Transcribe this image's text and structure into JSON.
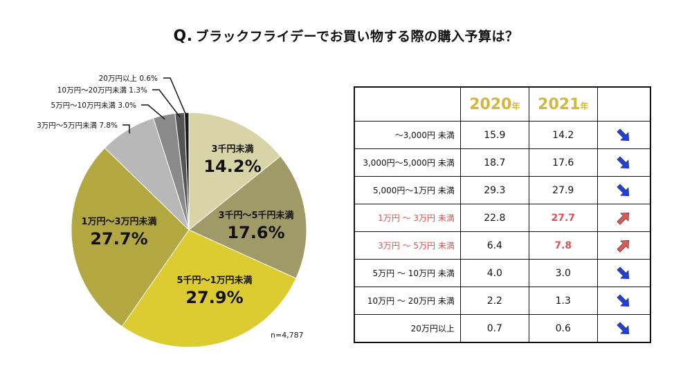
{
  "title": {
    "prefix": "Q.",
    "text": "ブラックフライデーでお買い物する際の購入予算は？"
  },
  "chart_data": [
    {
      "type": "pie",
      "series": [
        {
          "values": [
            14.2,
            17.6,
            27.9,
            27.7,
            7.8,
            3.0,
            1.3,
            0.6
          ]
        }
      ],
      "categories": [
        "3千円未満",
        "3千円～5千円未満",
        "5千円～1万円未満",
        "1万円～3万円未満",
        "3万円～5万円未満",
        "5万円～10万円未満",
        "10万円～20万円未満",
        "20万円以上"
      ],
      "value_labels": [
        "14.2%",
        "17.6%",
        "27.9%",
        "27.7%",
        "7.8%",
        "3.0%",
        "1.3%",
        "0.6%"
      ],
      "callout_labels": [
        "3万円～5万円未満 7.8%",
        "5万円～10万円未満 3.0%",
        "10万円～20万円未満 1.3%",
        "20万円以上 0.6%"
      ],
      "colors": [
        "#d9d4a8",
        "#a09a68",
        "#dccc32",
        "#b3a742",
        "#b8b8b8",
        "#8a8a8a",
        "#555555",
        "#1a1a1a"
      ],
      "note": "n=4,787"
    },
    {
      "type": "table",
      "columns": [
        "",
        "2020年",
        "2021年",
        ""
      ],
      "rows": [
        {
          "label": "～3,000円 未満",
          "v2020": "15.9",
          "v2021": "14.2",
          "trend": "down"
        },
        {
          "label": "3,000円～5,000円 未満",
          "v2020": "18.7",
          "v2021": "17.6",
          "trend": "down"
        },
        {
          "label": "5,000円～1万円 未満",
          "v2020": "29.3",
          "v2021": "27.9",
          "trend": "down"
        },
        {
          "label": "1万円 ～ 3万円 未満",
          "v2020": "22.8",
          "v2021": "27.7",
          "trend": "up"
        },
        {
          "label": "3万円 ～ 5万円 未満",
          "v2020": "6.4",
          "v2021": "7.8",
          "trend": "up"
        },
        {
          "label": "5万円 ～ 10万円 未満",
          "v2020": "4.0",
          "v2021": "3.0",
          "trend": "down"
        },
        {
          "label": "10万円 ～ 20万円 未満",
          "v2020": "2.2",
          "v2021": "1.3",
          "trend": "down"
        },
        {
          "label": "20万円以上",
          "v2020": "0.7",
          "v2021": "0.6",
          "trend": "down"
        }
      ]
    }
  ],
  "table": {
    "year_2020": "2020",
    "year_2021": "2021",
    "year_suffix": "年",
    "colors": {
      "up": "#e05555",
      "down": "#1f3fd6"
    }
  }
}
